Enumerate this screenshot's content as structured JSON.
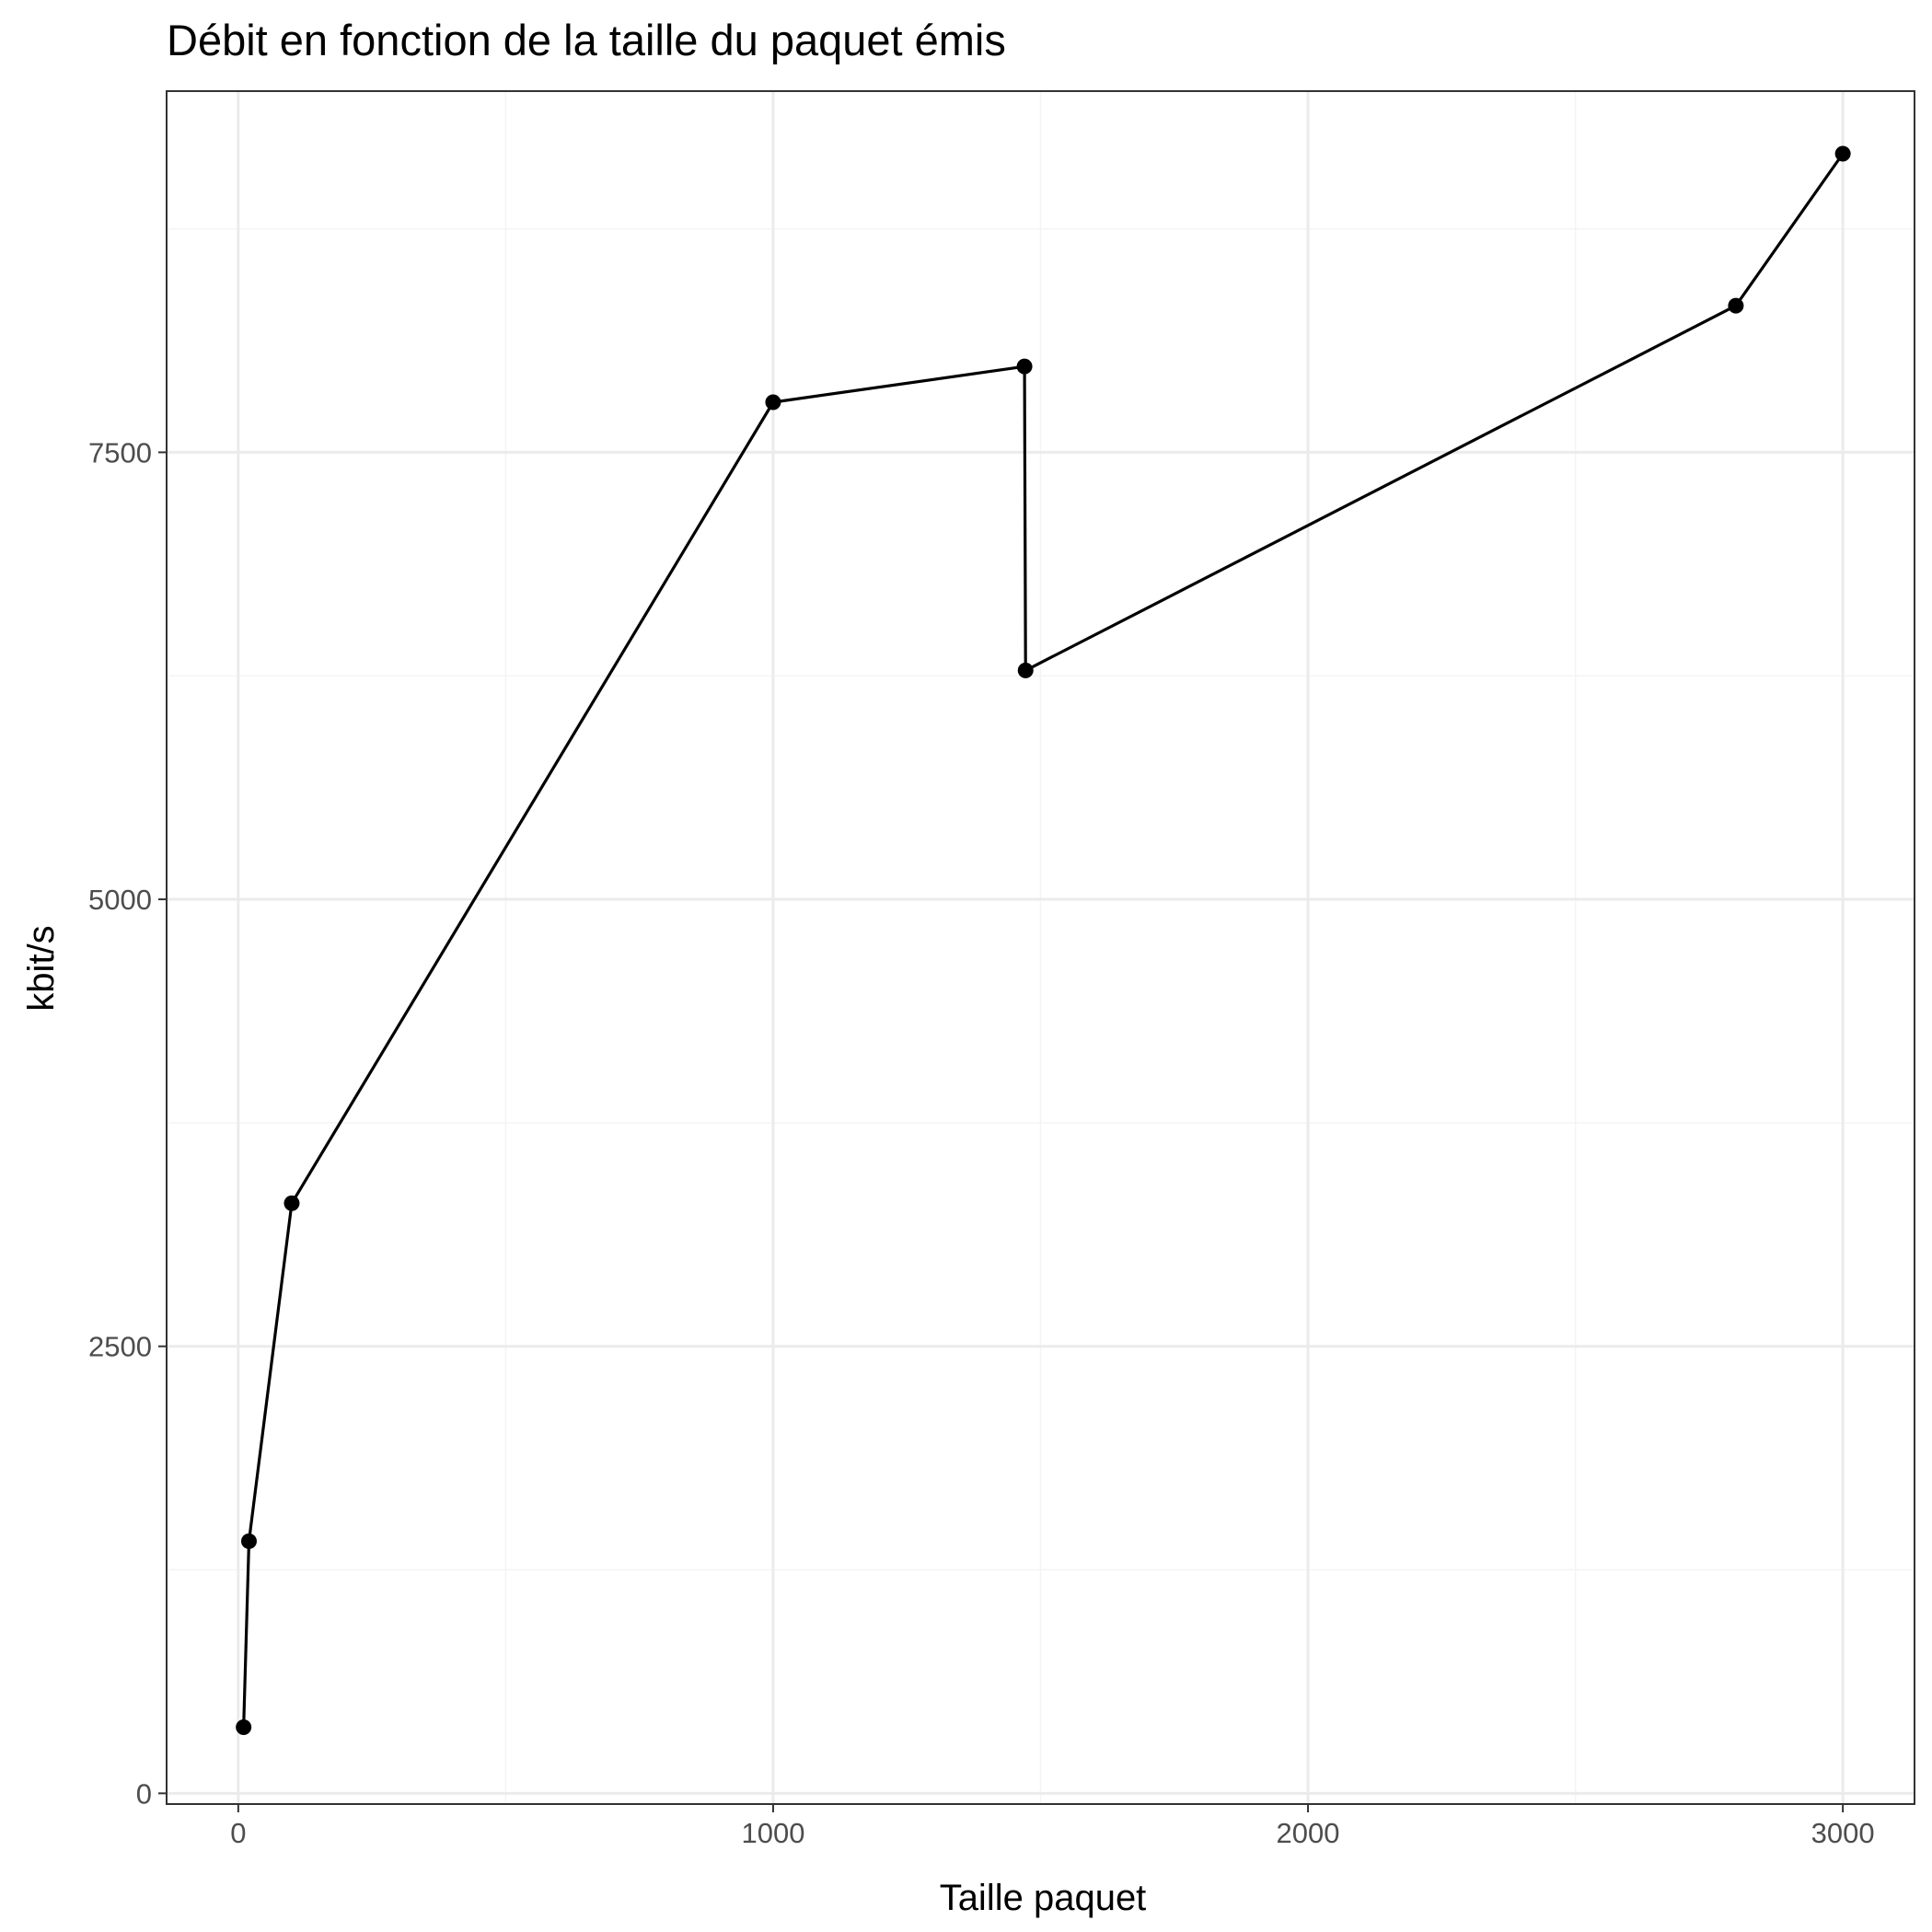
{
  "chart_data": {
    "type": "line",
    "title": "Débit en fonction de la taille du paquet émis",
    "xlabel": "Taille paquet",
    "ylabel": "kbit/s",
    "xlim": [
      -134,
      3134
    ],
    "ylim": [
      -60,
      9520
    ],
    "x_ticks": [
      0,
      1000,
      2000,
      3000
    ],
    "x_tick_labels": [
      "0",
      "1000",
      "2000",
      "3000"
    ],
    "x_minor_ticks": [
      500,
      1500,
      2500
    ],
    "y_ticks": [
      0,
      2500,
      5000,
      7500
    ],
    "y_tick_labels": [
      "0",
      "2500",
      "5000",
      "7500"
    ],
    "y_minor_ticks": [
      1250,
      3750,
      6250,
      8750
    ],
    "grid": true,
    "series": [
      {
        "x": [
          10,
          20,
          100,
          1000,
          1470,
          1472,
          2800,
          3000
        ],
        "y": [
          370,
          1410,
          3300,
          7780,
          7980,
          6280,
          8320,
          9170
        ]
      }
    ],
    "colors": {
      "line": "#000000",
      "point": "#000000",
      "grid_major": "#ebebeb",
      "grid_minor": "#f4f4f4",
      "panel_border": "#333333",
      "tick": "#333333"
    }
  }
}
